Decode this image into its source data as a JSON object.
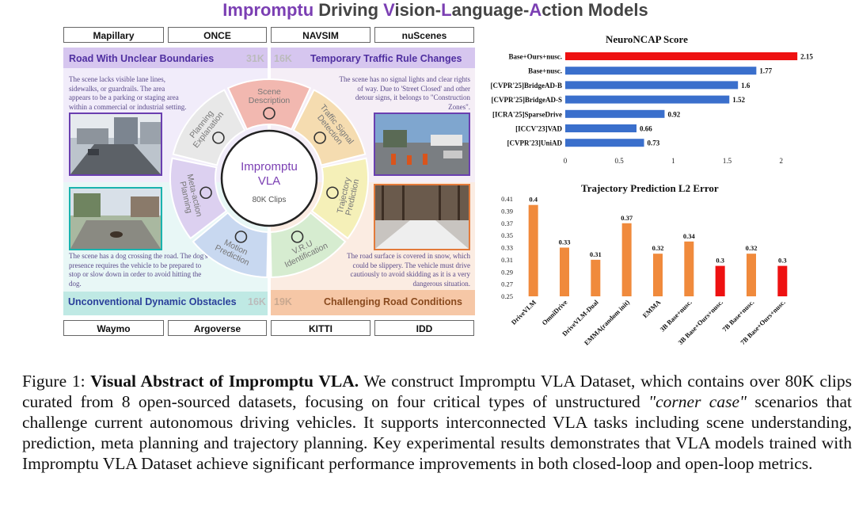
{
  "title": {
    "w1": "Impromptu",
    "w2": " Driving ",
    "w3": "V",
    "w4": "ision-",
    "w5": "L",
    "w6": "anguage-",
    "w7": "A",
    "w8": "ction Models"
  },
  "sources_top": [
    "Mapillary",
    "ONCE",
    "NAVSIM",
    "nuScenes"
  ],
  "sources_bottom": [
    "Waymo",
    "Argoverse",
    "KITTI",
    "IDD"
  ],
  "source_colors_top": [
    "#e0e0e0",
    "#b9c8e8",
    "#8a8a8a",
    "#e4e8f0"
  ],
  "source_colors_bottom": [
    "#f5e6a0",
    "#e8956a",
    "#dde4f2",
    "#bdbdbd"
  ],
  "quadrants": {
    "tl": {
      "title": "Road With Unclear Boundaries",
      "count": "31K",
      "text": "The scene lacks visible lane lines, sidewalks, or guardrails. The area appears to be a parking or staging area within a commercial or industrial setting."
    },
    "tr": {
      "title": "Temporary Traffic Rule Changes",
      "count": "16K",
      "text": "The scene has no signal lights and clear rights of way. Due to 'Street Closed' and other detour signs, it belongs to \"Construction Zones\"."
    },
    "bl": {
      "title": "Unconventional Dynamic Obstacles",
      "count": "16K",
      "text": "The scene has a dog crossing the road. The dog's presence requires the vehicle to be prepared to stop or slow down in order to avoid hitting the dog."
    },
    "br": {
      "title": "Challenging Road Conditions",
      "count": "19K",
      "text": "The road surface is covered in snow, which could be slippery. The vehicle must drive cautiously to avoid skidding as it is a very dangerous situation."
    }
  },
  "wheel": {
    "center_title": "Impromptu",
    "center_sub": "VLA",
    "center_clips": "80K Clips",
    "segments": [
      "Scene Description",
      "Traffic Signal Detection",
      "Trajectory Prediction",
      "V.R.U Identification",
      "Motion Prediction",
      "Meta-action Planning",
      "Planning Explanation"
    ],
    "segment_colors": [
      "#f2b8b0",
      "#f5dcb0",
      "#f5f0b8",
      "#d6ecd0",
      "#c8d8f0",
      "#dcd0f0",
      "#e8e8e8"
    ]
  },
  "chart_data": [
    {
      "type": "bar",
      "orientation": "horizontal",
      "title": "NeuroNCAP Score",
      "categories": [
        "Base+Ours+nusc.",
        "Base+nusc.",
        "[CVPR'25]BridgeAD-B",
        "[CVPR'25]BridgeAD-S",
        "[ICRA'25]SparseDrive",
        "[ICCV'23]VAD",
        "[CVPR'23]UniAD"
      ],
      "values": [
        2.15,
        1.77,
        1.6,
        1.52,
        0.92,
        0.66,
        0.73
      ],
      "labels": [
        "2.15",
        "1.77",
        "1.6",
        "1.52",
        "0.92",
        "0.66",
        "0.73"
      ],
      "colors": [
        "#ee1111",
        "#3a6fcc",
        "#3a6fcc",
        "#3a6fcc",
        "#3a6fcc",
        "#3a6fcc",
        "#3a6fcc"
      ],
      "xticks": [
        "0",
        "0.5",
        "1",
        "1.5",
        "2"
      ],
      "xlim": [
        0,
        2.2
      ]
    },
    {
      "type": "bar",
      "title": "Trajectory Prediction L2 Error",
      "categories": [
        "DriveVLM",
        "OmniDrive",
        "DriveVLM-Dual",
        "EMMA(random init)",
        "EMMA",
        "3B Base+nusc.",
        "3B Base+Ours+nusc.",
        "7B Base+nusc.",
        "7B Base+Ours+nusc."
      ],
      "values": [
        0.4,
        0.33,
        0.31,
        0.37,
        0.32,
        0.34,
        0.3,
        0.32,
        0.3
      ],
      "labels": [
        "0.4",
        "0.33",
        "0.31",
        "0.37",
        "0.32",
        "0.34",
        "0.3",
        "0.32",
        "0.3"
      ],
      "colors": [
        "#f08a3c",
        "#f08a3c",
        "#f08a3c",
        "#f08a3c",
        "#f08a3c",
        "#f08a3c",
        "#ee1111",
        "#f08a3c",
        "#ee1111"
      ],
      "yticks": [
        "0.41",
        "0.39",
        "0.37",
        "0.35",
        "0.33",
        "0.31",
        "0.29",
        "0.27",
        "0.25"
      ],
      "ylim": [
        0.25,
        0.41
      ]
    }
  ],
  "caption": {
    "prefix": "Figure 1: ",
    "bold": "Visual Abstract of Impromptu VLA.",
    "part1": " We construct Impromptu VLA Dataset, which contains over 80K clips curated from 8 open-sourced datasets, focusing on four critical types of unstructured ",
    "italic": "\"corner case\"",
    "part2": " scenarios that challenge current autonomous driving vehicles. It supports interconnected VLA tasks including scene understanding, prediction, meta planning and trajectory planning. Key experimental results demonstrates that VLA models trained with Impromptu VLA Dataset achieve significant performance improvements in both closed-loop and open-loop metrics."
  }
}
